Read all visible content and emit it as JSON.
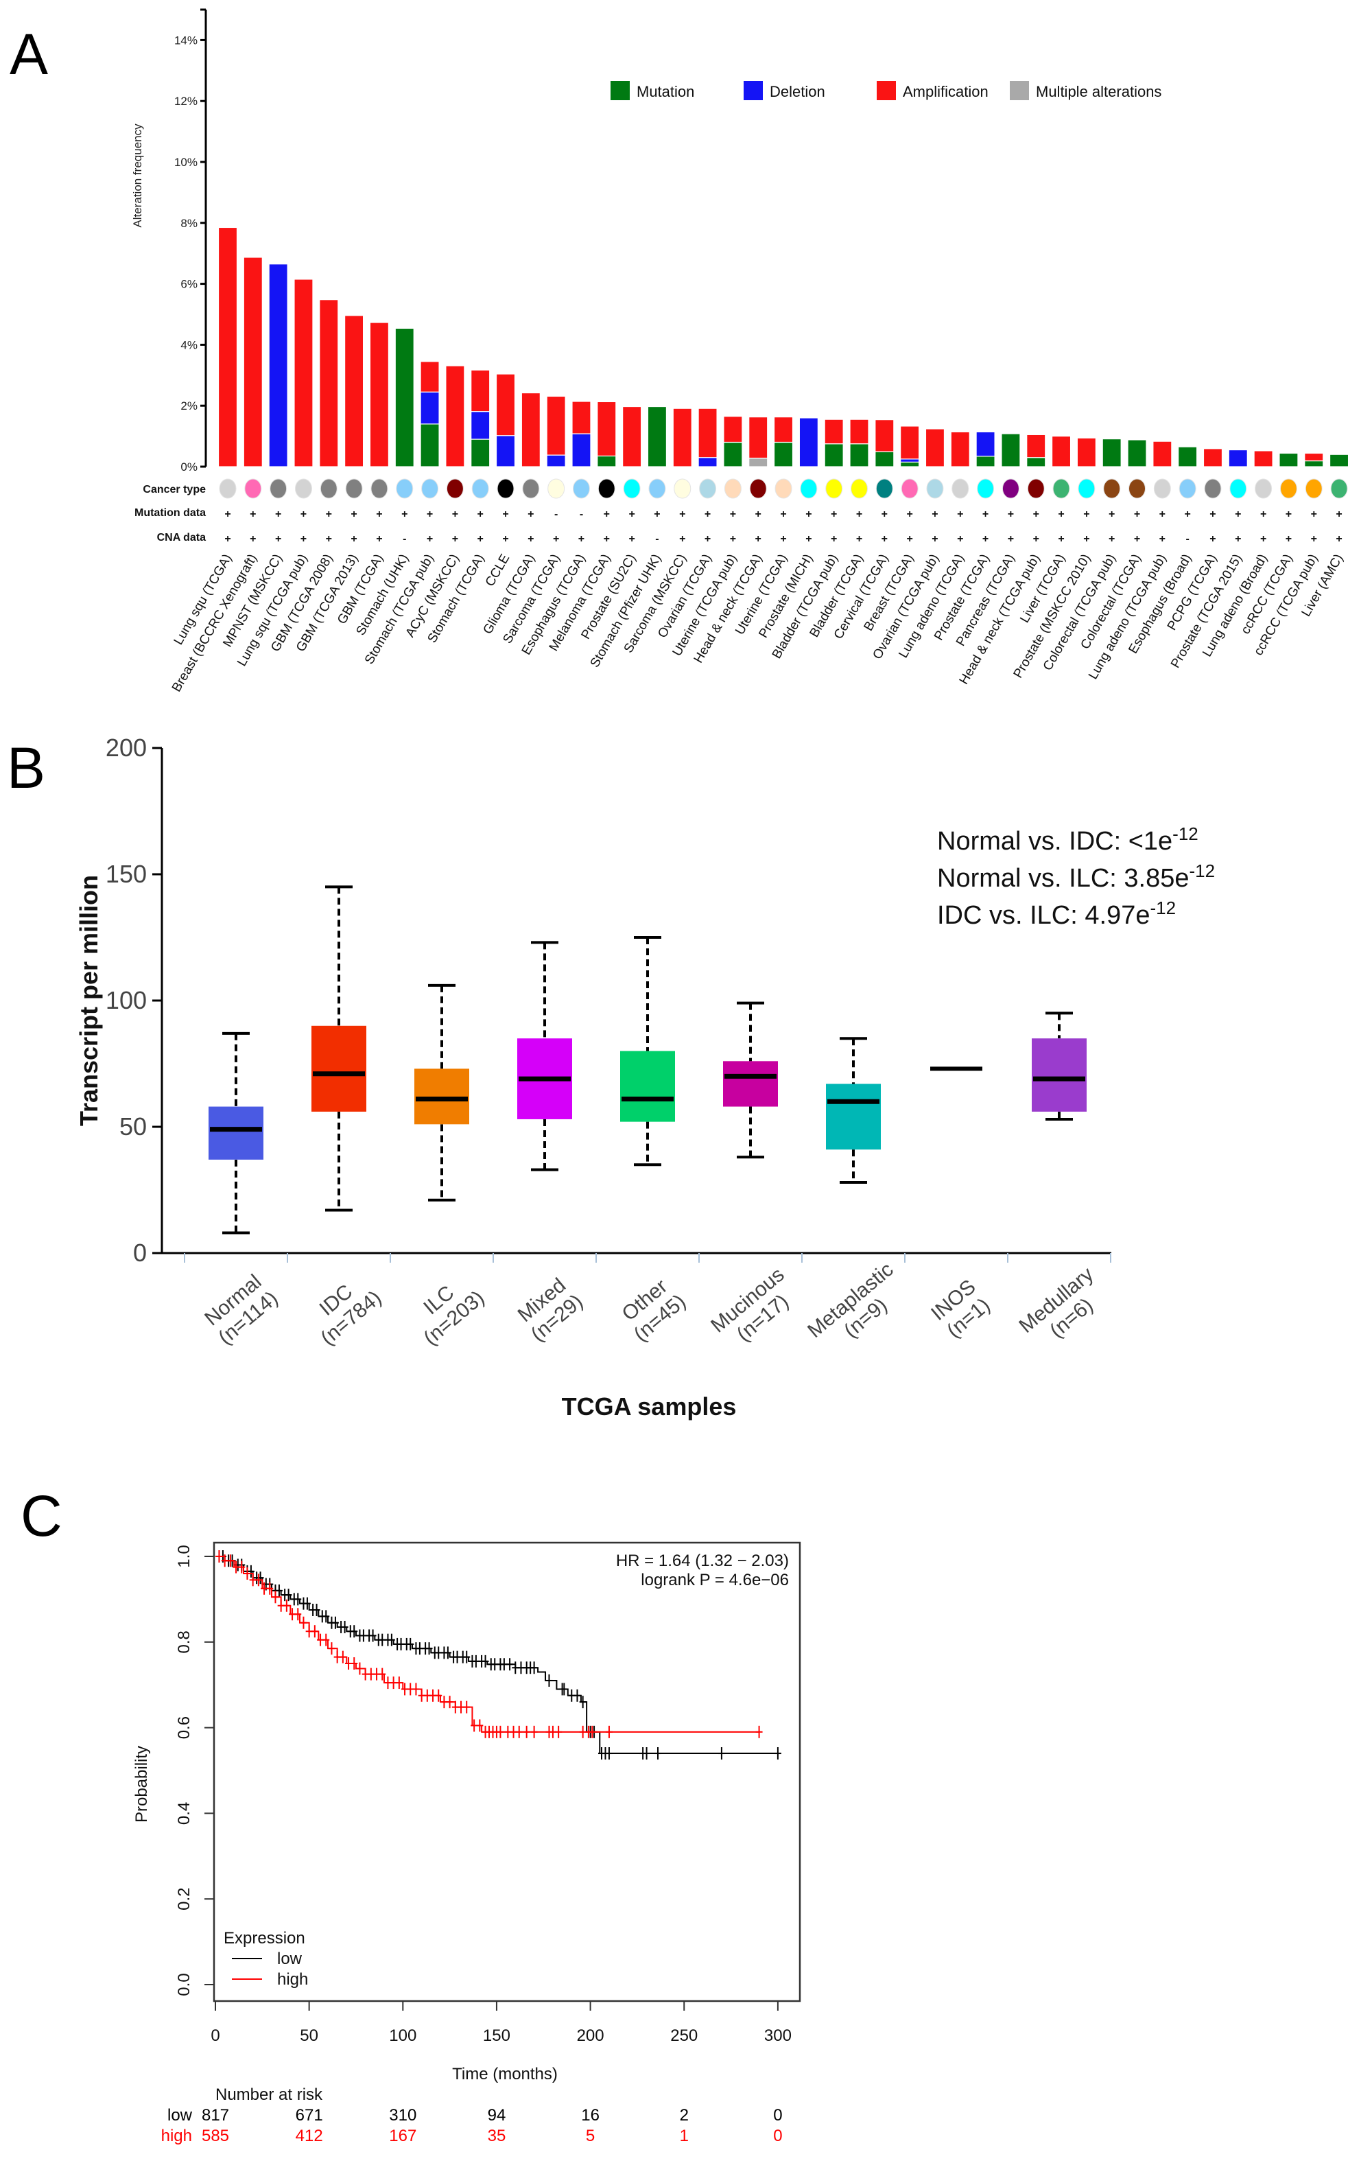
{
  "panel_letters": {
    "a": "A",
    "b": "B",
    "c": "C"
  },
  "chart_data": [
    {
      "type": "bar",
      "stacked": true,
      "ylabel": "Alteration frequency",
      "ylim": [
        0,
        14
      ],
      "yticks": [
        "0%",
        "2%",
        "4%",
        "6%",
        "8%",
        "10%",
        "12%",
        "14%"
      ],
      "legend_position": "top-right",
      "row_labels": {
        "cancer_type": "Cancer type",
        "mutation": "Mutation data",
        "cna": "CNA data"
      },
      "categories": [
        "Lung squ (TCGA)",
        "Breast (BCCRC Xenograft)",
        "MPNST (MSKCC)",
        "Lung squ (TCGA pub)",
        "GBM (TCGA 2008)",
        "GBM (TCGA 2013)",
        "GBM (TCGA)",
        "Stomach (UHK)",
        "Stomach (TCGA pub)",
        "ACyC (MSKCC)",
        "Stomach (TCGA)",
        "CCLE",
        "Glioma (TCGA)",
        "Sarcoma (TCGA)",
        "Esophagus (TCGA)",
        "Melanoma (TCGA)",
        "Prostate (SU2C)",
        "Stomach (Pfizer UHK)",
        "Sarcoma (MSKCC)",
        "Ovarian (TCGA)",
        "Uterine (TCGA pub)",
        "Head & neck (TCGA)",
        "Uterine (TCGA)",
        "Prostate (MICH)",
        "Bladder (TCGA pub)",
        "Bladder (TCGA)",
        "Cervical (TCGA)",
        "Breast (TCGA)",
        "Ovarian (TCGA pub)",
        "Lung adeno (TCGA)",
        "Prostate (TCGA)",
        "Pancreas (TCGA)",
        "Head & neck (TCGA pub)",
        "Liver (TCGA)",
        "Prostate (MSKCC 2010)",
        "Colorectal (TCGA pub)",
        "Colorectal (TCGA)",
        "Lung adeno (TCGA pub)",
        "Esophagus (Broad)",
        "PCPG (TCGA)",
        "Prostate (TCGA 2015)",
        "Lung adeno (Broad)",
        "ccRCC (TCGA)",
        "ccRCC (TCGA pub)",
        "Liver (AMC)"
      ],
      "series": [
        {
          "name": "Mutation",
          "color": "#007a12",
          "values": [
            0,
            0,
            0,
            0,
            0,
            0,
            0,
            4.54,
            1.4,
            0,
            0.9,
            0,
            0,
            0,
            0,
            0.35,
            0,
            1.97,
            0,
            0,
            0.8,
            0,
            0.8,
            0,
            0.75,
            0.75,
            0.49,
            0.15,
            0,
            0,
            0.34,
            1.08,
            0.3,
            0,
            0,
            0.91,
            0.88,
            0,
            0.65,
            0,
            0,
            0,
            0.44,
            0.19,
            0.4
          ]
        },
        {
          "name": "Multiple alterations",
          "color": "#a9a9a9",
          "values": [
            0,
            0,
            0,
            0,
            0,
            0,
            0,
            0,
            0,
            0,
            0,
            0,
            0,
            0,
            0,
            0,
            0,
            0,
            0,
            0,
            0,
            0.28,
            0,
            0,
            0,
            0,
            0,
            0,
            0,
            0,
            0,
            0,
            0,
            0,
            0,
            0,
            0,
            0,
            0,
            0,
            0,
            0,
            0,
            0,
            0
          ]
        },
        {
          "name": "Deletion",
          "color": "#1414f5",
          "values": [
            0,
            0,
            6.65,
            0,
            0,
            0,
            0,
            0,
            1.05,
            0,
            0.91,
            1.02,
            0,
            0.38,
            1.08,
            0,
            0,
            0,
            0,
            0.3,
            0,
            0,
            0,
            1.6,
            0,
            0,
            0,
            0.1,
            0,
            0,
            0.8,
            0,
            0,
            0,
            0,
            0,
            0,
            0,
            0,
            0,
            0.55,
            0,
            0,
            0,
            0
          ]
        },
        {
          "name": "Amplification",
          "color": "#fa1414",
          "values": [
            7.85,
            6.87,
            0,
            6.15,
            5.48,
            4.96,
            4.73,
            0,
            1.0,
            3.31,
            1.36,
            2.02,
            2.42,
            1.93,
            1.06,
            1.78,
            1.97,
            0,
            1.91,
            1.61,
            0.85,
            1.35,
            0.83,
            0,
            0.8,
            0.8,
            1.05,
            1.08,
            1.24,
            1.14,
            0,
            0,
            0.75,
            1.0,
            0.94,
            0,
            0,
            0.83,
            0,
            0.59,
            0,
            0.52,
            0,
            0.25,
            0
          ]
        }
      ],
      "legend_order": [
        "Mutation",
        "Deletion",
        "Amplification",
        "Multiple alterations"
      ],
      "cancer_type_colors": [
        "#d3d3d3",
        "#ff69b4",
        "#808080",
        "#d3d3d3",
        "#808080",
        "#808080",
        "#808080",
        "#87cefa",
        "#87cefa",
        "#800000",
        "#87cefa",
        "#000000",
        "#808080",
        "#fffde0",
        "#87cefa",
        "#000000",
        "#00ffff",
        "#87cefa",
        "#fffde0",
        "#add8e6",
        "#ffdab9",
        "#800000",
        "#ffdab9",
        "#00ffff",
        "#ffff00",
        "#ffff00",
        "#008080",
        "#ff69b4",
        "#add8e6",
        "#d3d3d3",
        "#00ffff",
        "#800080",
        "#800000",
        "#3cb371",
        "#00ffff",
        "#8b4513",
        "#8b4513",
        "#d3d3d3",
        "#87cefa",
        "#808080",
        "#00ffff",
        "#d3d3d3",
        "#ffa500",
        "#ffa500",
        "#3cb371"
      ],
      "mutation_data": [
        "+",
        "+",
        "+",
        "+",
        "+",
        "+",
        "+",
        "+",
        "+",
        "+",
        "+",
        "+",
        "+",
        "-",
        "-",
        "+",
        "+",
        "+",
        "+",
        "+",
        "+",
        "+",
        "+",
        "+",
        "+",
        "+",
        "+",
        "+",
        "+",
        "+",
        "+",
        "+",
        "+",
        "+",
        "+",
        "+",
        "+",
        "+",
        "+",
        "+",
        "+",
        "+",
        "+",
        "+",
        "+"
      ],
      "cna_data": [
        "+",
        "+",
        "+",
        "+",
        "+",
        "+",
        "+",
        "-",
        "+",
        "+",
        "+",
        "+",
        "+",
        "+",
        "+",
        "+",
        "+",
        "-",
        "+",
        "+",
        "+",
        "+",
        "+",
        "+",
        "+",
        "+",
        "+",
        "+",
        "+",
        "+",
        "+",
        "+",
        "+",
        "+",
        "+",
        "+",
        "+",
        "+",
        "-",
        "+",
        "+",
        "+",
        "+",
        "+",
        "+"
      ]
    },
    {
      "type": "box",
      "ylabel": "Transcript per million",
      "xlabel": "TCGA samples",
      "ylim": [
        0,
        200
      ],
      "yticks": [
        "0",
        "50",
        "100",
        "150",
        "200"
      ],
      "groups": [
        {
          "label": "Normal",
          "n": "(n=114)",
          "color": "#4a5ae3",
          "low": 8,
          "q1": 37,
          "median": 49,
          "q3": 58,
          "high": 87
        },
        {
          "label": "IDC",
          "n": "(n=784)",
          "color": "#f22e00",
          "low": 17,
          "q1": 56,
          "median": 71,
          "q3": 90,
          "high": 145
        },
        {
          "label": "ILC",
          "n": "(n=203)",
          "color": "#f07d00",
          "low": 21,
          "q1": 51,
          "median": 61,
          "q3": 73,
          "high": 106
        },
        {
          "label": "Mixed",
          "n": "(n=29)",
          "color": "#d500f9",
          "low": 33,
          "q1": 53,
          "median": 69,
          "q3": 85,
          "high": 123
        },
        {
          "label": "Other",
          "n": "(n=45)",
          "color": "#00d06a",
          "low": 35,
          "q1": 52,
          "median": 61,
          "q3": 80,
          "high": 125
        },
        {
          "label": "Mucinous",
          "n": "(n=17)",
          "color": "#c7009f",
          "low": 38,
          "q1": 58,
          "median": 70,
          "q3": 76,
          "high": 99
        },
        {
          "label": "Metaplastic",
          "n": "(n=9)",
          "color": "#00b7b5",
          "low": 28,
          "q1": 41,
          "median": 60,
          "q3": 67,
          "high": 85
        },
        {
          "label": "INOS",
          "n": "(n=1)",
          "color": "#000000",
          "low": 73,
          "q1": 73,
          "median": 73,
          "q3": 73,
          "high": 73
        },
        {
          "label": "Medullary",
          "n": "(n=6)",
          "color": "#9a3ccd",
          "low": 53,
          "q1": 56,
          "median": 69,
          "q3": 85,
          "high": 95
        }
      ],
      "annotations": [
        {
          "text": "Normal vs. IDC: <1e",
          "exp": "-12"
        },
        {
          "text": "Normal vs. ILC: 3.85e",
          "exp": "-12"
        },
        {
          "text": "IDC vs. ILC: 4.97e",
          "exp": "-12"
        }
      ]
    },
    {
      "type": "line",
      "subtype": "kaplan-meier",
      "xlabel": "Time (months)",
      "ylabel": "Probability",
      "xlim": [
        0,
        300
      ],
      "ylim": [
        0,
        1
      ],
      "xticks": [
        "0",
        "50",
        "100",
        "150",
        "200",
        "250",
        "300"
      ],
      "yticks": [
        "0.0",
        "0.2",
        "0.4",
        "0.6",
        "0.8",
        "1.0"
      ],
      "stats": [
        "HR = 1.64 (1.32 − 2.03)",
        "logrank P = 4.6e−06"
      ],
      "legend_title": "Expression",
      "legend_position": "bottom-left",
      "series": [
        {
          "name": "low",
          "color": "#000000",
          "steps": [
            [
              5,
              0.99
            ],
            [
              10,
              0.98
            ],
            [
              15,
              0.965
            ],
            [
              20,
              0.95
            ],
            [
              25,
              0.935
            ],
            [
              30,
              0.92
            ],
            [
              35,
              0.91
            ],
            [
              40,
              0.9
            ],
            [
              45,
              0.89
            ],
            [
              50,
              0.875
            ],
            [
              55,
              0.86
            ],
            [
              60,
              0.845
            ],
            [
              65,
              0.835
            ],
            [
              70,
              0.825
            ],
            [
              75,
              0.815
            ],
            [
              85,
              0.805
            ],
            [
              95,
              0.795
            ],
            [
              105,
              0.785
            ],
            [
              115,
              0.775
            ],
            [
              125,
              0.765
            ],
            [
              135,
              0.755
            ],
            [
              145,
              0.748
            ],
            [
              160,
              0.74
            ],
            [
              172,
              0.73
            ],
            [
              176,
              0.71
            ],
            [
              182,
              0.69
            ],
            [
              188,
              0.675
            ],
            [
              195,
              0.66
            ],
            [
              198,
              0.59
            ],
            [
              205,
              0.54
            ]
          ],
          "censored": [
            2,
            4,
            7,
            9,
            12,
            14,
            17,
            19,
            22,
            24,
            27,
            29,
            32,
            34,
            37,
            39,
            42,
            44,
            47,
            49,
            52,
            54,
            57,
            59,
            62,
            64,
            67,
            69,
            72,
            74,
            77,
            79,
            82,
            84,
            87,
            89,
            92,
            94,
            97,
            99,
            102,
            104,
            107,
            109,
            112,
            114,
            117,
            119,
            122,
            124,
            127,
            129,
            132,
            134,
            137,
            139,
            142,
            144,
            147,
            149,
            152,
            154,
            157,
            160,
            163,
            166,
            168,
            170,
            178,
            185,
            186,
            190,
            193,
            196,
            200,
            202,
            206,
            208,
            210,
            228,
            230,
            236,
            270,
            300
          ]
        },
        {
          "name": "high",
          "color": "#ff0000",
          "steps": [
            [
              5,
              0.99
            ],
            [
              10,
              0.975
            ],
            [
              15,
              0.96
            ],
            [
              20,
              0.945
            ],
            [
              25,
              0.925
            ],
            [
              30,
              0.905
            ],
            [
              35,
              0.885
            ],
            [
              40,
              0.865
            ],
            [
              45,
              0.845
            ],
            [
              50,
              0.825
            ],
            [
              55,
              0.805
            ],
            [
              60,
              0.785
            ],
            [
              65,
              0.765
            ],
            [
              70,
              0.75
            ],
            [
              75,
              0.738
            ],
            [
              80,
              0.725
            ],
            [
              90,
              0.705
            ],
            [
              100,
              0.69
            ],
            [
              110,
              0.675
            ],
            [
              120,
              0.66
            ],
            [
              128,
              0.648
            ],
            [
              137,
              0.605
            ],
            [
              142,
              0.59
            ]
          ],
          "censored": [
            2,
            5,
            8,
            11,
            14,
            17,
            20,
            23,
            26,
            29,
            32,
            35,
            38,
            41,
            44,
            47,
            50,
            53,
            56,
            59,
            62,
            65,
            68,
            71,
            74,
            77,
            80,
            83,
            86,
            89,
            92,
            95,
            98,
            101,
            104,
            107,
            110,
            113,
            116,
            119,
            122,
            125,
            128,
            131,
            134,
            138,
            141,
            144,
            146,
            148,
            150,
            152,
            156,
            159,
            162,
            166,
            170,
            178,
            180,
            183,
            196,
            199,
            201,
            210,
            290
          ]
        }
      ],
      "risk_table": {
        "title": "Number at risk",
        "rows": [
          {
            "name": "low",
            "color": "#000000",
            "values": [
              "817",
              "671",
              "310",
              "94",
              "16",
              "2",
              "0"
            ]
          },
          {
            "name": "high",
            "color": "#ff0000",
            "values": [
              "585",
              "412",
              "167",
              "35",
              "5",
              "1",
              "0"
            ]
          }
        ]
      }
    }
  ]
}
